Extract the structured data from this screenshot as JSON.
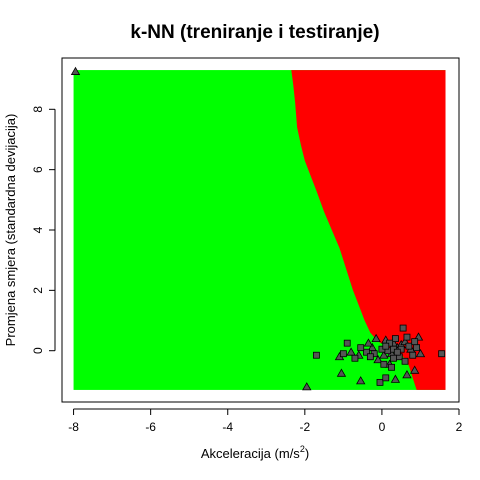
{
  "chart_data": {
    "type": "scatter",
    "title": "k-NN (treniranje i testiranje)",
    "xlabel_main": "Akceleracija (m",
    "xlabel_frac": "/s",
    "xlabel_sup": "2",
    "xlabel_close": ")",
    "ylabel": "Promjena smjera (standardna devijacija)",
    "xlim": [
      -8.3,
      2.0
    ],
    "ylim": [
      -1.7,
      9.7
    ],
    "x_ticks": [
      -8,
      -6,
      -4,
      -2,
      0,
      2
    ],
    "y_ticks": [
      0,
      2,
      4,
      6,
      8
    ],
    "grid": false,
    "colors": {
      "class_a_region": "#00ff00",
      "class_b_region": "#ff0000",
      "point_fill": "#555555",
      "point_stroke": "#000000"
    },
    "decision_regions": {
      "x_range": [
        -8,
        1.65
      ],
      "y_range": [
        -1.3,
        9.3
      ],
      "boundary": [
        [
          -2.35,
          9.3
        ],
        [
          -2.3,
          8.8
        ],
        [
          -2.25,
          8.2
        ],
        [
          -2.2,
          7.4
        ],
        [
          -2.1,
          6.8
        ],
        [
          -2.0,
          6.3
        ],
        [
          -1.85,
          5.8
        ],
        [
          -1.7,
          5.3
        ],
        [
          -1.5,
          4.6
        ],
        [
          -1.3,
          4.0
        ],
        [
          -1.1,
          3.4
        ],
        [
          -0.9,
          2.6
        ],
        [
          -0.75,
          2.0
        ],
        [
          -0.6,
          1.5
        ],
        [
          -0.45,
          1.0
        ],
        [
          -0.3,
          0.6
        ],
        [
          -0.1,
          0.3
        ],
        [
          0.2,
          0.1
        ],
        [
          0.5,
          -0.1
        ],
        [
          0.7,
          -0.5
        ],
        [
          0.8,
          -0.9
        ],
        [
          0.9,
          -1.3
        ]
      ]
    },
    "series": [
      {
        "marker": "triangle",
        "points": [
          [
            -7.95,
            9.25
          ],
          [
            -1.95,
            -1.2
          ],
          [
            0.95,
            0.45
          ],
          [
            -1.05,
            -0.75
          ],
          [
            -0.55,
            -1.0
          ],
          [
            0.1,
            0.35
          ],
          [
            0.3,
            0.25
          ],
          [
            0.65,
            -0.8
          ],
          [
            0.85,
            -0.65
          ],
          [
            0.05,
            -0.15
          ],
          [
            -0.25,
            0.1
          ],
          [
            0.4,
            0.1
          ],
          [
            0.2,
            -0.45
          ],
          [
            0.5,
            0.2
          ],
          [
            -0.6,
            -0.15
          ],
          [
            -0.35,
            0.25
          ],
          [
            0.75,
            0.05
          ],
          [
            -0.1,
            -0.3
          ],
          [
            0.25,
            -0.1
          ],
          [
            -0.8,
            -0.05
          ],
          [
            1.0,
            -0.1
          ],
          [
            0.6,
            0.3
          ],
          [
            -0.15,
            0.4
          ],
          [
            -1.1,
            -0.2
          ],
          [
            0.35,
            -0.95
          ]
        ]
      },
      {
        "marker": "square",
        "points": [
          [
            -1.7,
            -0.15
          ],
          [
            -1.0,
            -0.1
          ],
          [
            -0.9,
            0.25
          ],
          [
            0.55,
            0.75
          ],
          [
            0.45,
            -0.2
          ],
          [
            0.15,
            0.0
          ],
          [
            0.3,
            0.05
          ],
          [
            0.0,
            0.05
          ],
          [
            -0.2,
            -0.1
          ],
          [
            0.7,
            0.15
          ],
          [
            0.8,
            -0.15
          ],
          [
            0.9,
            0.1
          ],
          [
            0.35,
            0.4
          ],
          [
            -0.4,
            -0.05
          ],
          [
            0.05,
            -0.45
          ],
          [
            0.25,
            -0.55
          ],
          [
            -0.05,
            -1.05
          ],
          [
            0.1,
            -0.9
          ],
          [
            0.6,
            -0.35
          ],
          [
            1.55,
            -0.1
          ],
          [
            -0.55,
            0.1
          ],
          [
            0.5,
            0.05
          ],
          [
            0.2,
            0.25
          ],
          [
            0.4,
            -0.05
          ],
          [
            0.65,
            0.45
          ],
          [
            0.85,
            0.3
          ],
          [
            -0.3,
            -0.2
          ],
          [
            0.1,
            0.15
          ],
          [
            -0.7,
            -0.25
          ],
          [
            0.3,
            -0.25
          ]
        ]
      }
    ]
  }
}
